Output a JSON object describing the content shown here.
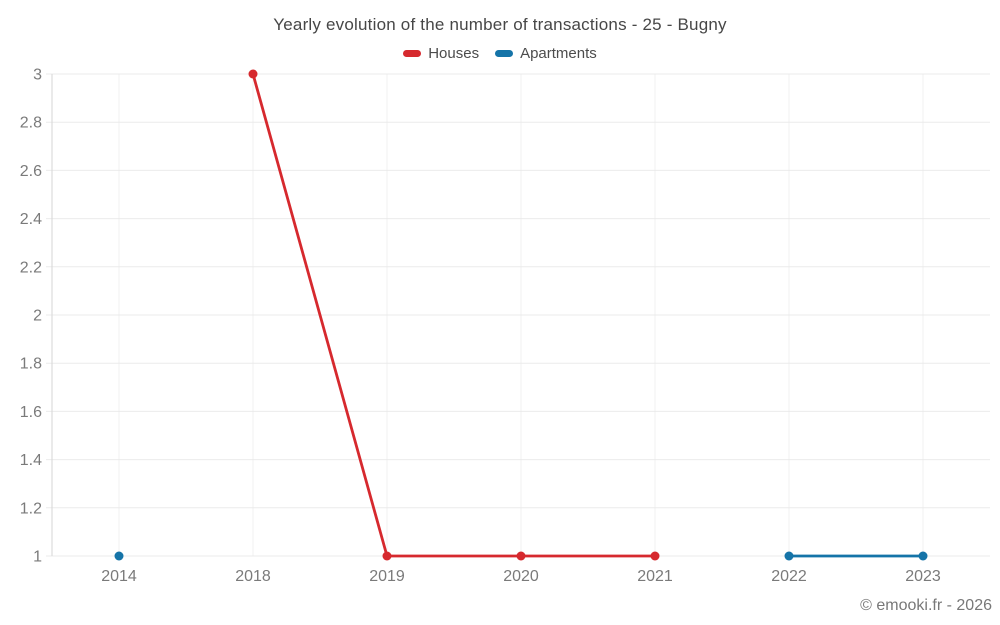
{
  "title": "Yearly evolution of the number of transactions - 25 - Bugny",
  "footer": {
    "credit": "© emooki.fr - 2026"
  },
  "colors": {
    "houses": "#d6292e",
    "apartments": "#1574a8",
    "grid_line": "#ebebeb",
    "axis_line": "#d6d6d6",
    "tick_label": "#7a7a7a"
  },
  "chart_data": {
    "type": "line",
    "title": "Yearly evolution of the number of transactions - 25 - Bugny",
    "categories": [
      "2014",
      "2018",
      "2019",
      "2020",
      "2021",
      "2022",
      "2023"
    ],
    "series": [
      {
        "name": "Houses",
        "color": "#d6292e",
        "values": [
          null,
          3,
          1,
          1,
          1,
          null,
          null
        ]
      },
      {
        "name": "Apartments",
        "color": "#1574a8",
        "values": [
          1,
          null,
          null,
          null,
          null,
          1,
          1
        ]
      }
    ],
    "xlabel": "",
    "ylabel": "",
    "ylim": [
      1,
      3
    ],
    "y_ticks": [
      "1",
      "1.2",
      "1.4",
      "1.6",
      "1.8",
      "2",
      "2.2",
      "2.4",
      "2.6",
      "2.8",
      "3"
    ],
    "grid": "on",
    "legend_position": "top-center"
  }
}
